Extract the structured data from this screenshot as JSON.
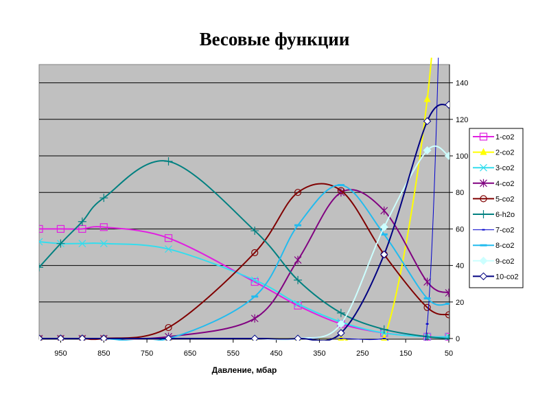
{
  "chart_data": {
    "type": "line",
    "title": "Весовые функции",
    "xlabel": "Давление, мбар",
    "ylabel": "",
    "x": [
      1000,
      950,
      900,
      850,
      700,
      500,
      400,
      300,
      200,
      100,
      50
    ],
    "x_tick_labels": [
      "950",
      "850",
      "750",
      "650",
      "550",
      "450",
      "350",
      "250",
      "150",
      "50"
    ],
    "x_ticks": [
      950,
      850,
      750,
      650,
      550,
      450,
      350,
      250,
      150,
      50
    ],
    "xlim": [
      1000,
      50
    ],
    "y_ticks": [
      0,
      20,
      40,
      60,
      80,
      100,
      120,
      140
    ],
    "ylim": [
      0,
      150
    ],
    "y_axis_position": "right",
    "grid": "horizontal",
    "plot_background": "#c0c0c0",
    "legend_position": "right",
    "series": [
      {
        "name": "1-co2",
        "color": "#e020e0",
        "marker": "square",
        "values": [
          60,
          60,
          60,
          61,
          55,
          31,
          18,
          8,
          3,
          1,
          1
        ]
      },
      {
        "name": "2-co2",
        "color": "#ffff00",
        "marker": "triangle",
        "values": [
          0,
          0,
          0,
          0,
          0,
          0,
          0,
          0,
          0,
          131,
          300
        ]
      },
      {
        "name": "3-co2",
        "color": "#33ddee",
        "marker": "x",
        "values": [
          53,
          52,
          52,
          52,
          49,
          32,
          19,
          9,
          3,
          1,
          1
        ]
      },
      {
        "name": "4-co2",
        "color": "#800080",
        "marker": "star",
        "values": [
          0,
          0,
          0,
          0,
          1,
          11,
          43,
          80,
          70,
          31,
          25
        ]
      },
      {
        "name": "5-co2",
        "color": "#800000",
        "marker": "circle",
        "values": [
          0,
          0,
          0,
          0,
          6,
          47,
          80,
          81,
          46,
          17,
          13
        ]
      },
      {
        "name": "6-h2o",
        "color": "#008080",
        "marker": "plus",
        "values": [
          39,
          52,
          64,
          77,
          97,
          59,
          32,
          14,
          5,
          1,
          0
        ]
      },
      {
        "name": "7-co2",
        "color": "#0000cc",
        "marker": "dash",
        "values": [
          0,
          0,
          0,
          0,
          0,
          0,
          0,
          0,
          0,
          8,
          400
        ]
      },
      {
        "name": "8-co2",
        "color": "#22bbee",
        "marker": "bar",
        "values": [
          0,
          0,
          0,
          0,
          0,
          23,
          62,
          84,
          57,
          22,
          19
        ]
      },
      {
        "name": "9-co2",
        "color": "#ccffff",
        "marker": "diamond-filled",
        "values": [
          0,
          0,
          0,
          0,
          0,
          0,
          0,
          8,
          61,
          103,
          100
        ]
      },
      {
        "name": "10-co2",
        "color": "#000080",
        "marker": "diamond",
        "values": [
          0,
          0,
          0,
          0,
          0,
          0,
          0,
          3,
          46,
          119,
          128
        ]
      }
    ]
  }
}
